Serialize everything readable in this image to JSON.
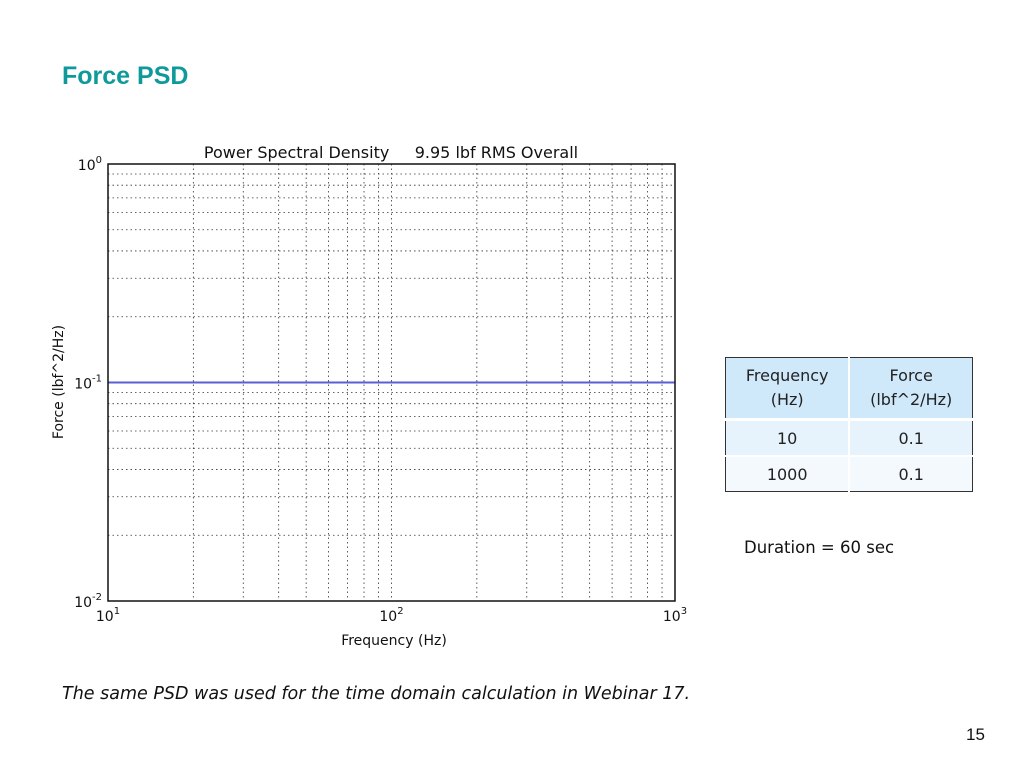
{
  "slide": {
    "title": "Force PSD",
    "note": "The same PSD was used for the time domain calculation in Webinar 17.",
    "page_number": "15",
    "duration_text": "Duration = 60 sec"
  },
  "table": {
    "headers": [
      {
        "line1": "Frequency",
        "line2": "(Hz)"
      },
      {
        "line1": "Force",
        "line2": "(lbf^2/Hz)"
      }
    ],
    "rows": [
      {
        "frequency": "10",
        "force": "0.1"
      },
      {
        "frequency": "1000",
        "force": "0.1"
      }
    ]
  },
  "colors": {
    "title": "#0e9a9a",
    "series": "#5b5fd6",
    "table_header": "#cfe9fb"
  },
  "chart_data": {
    "type": "line",
    "title": "Power Spectral Density     9.95 lbf RMS Overall",
    "xlabel": "Frequency (Hz)",
    "ylabel": "Force (lbf^2/Hz)",
    "xscale": "log",
    "yscale": "log",
    "xlim": [
      10,
      1000
    ],
    "ylim": [
      0.01,
      1
    ],
    "grid": true,
    "x_ticks": [
      "10^1",
      "10^2",
      "10^3"
    ],
    "y_ticks": [
      "10^-2",
      "10^-1",
      "10^0"
    ],
    "series": [
      {
        "name": "PSD",
        "x": [
          10,
          1000
        ],
        "y": [
          0.1,
          0.1
        ],
        "color": "#5b5fd6"
      }
    ]
  }
}
